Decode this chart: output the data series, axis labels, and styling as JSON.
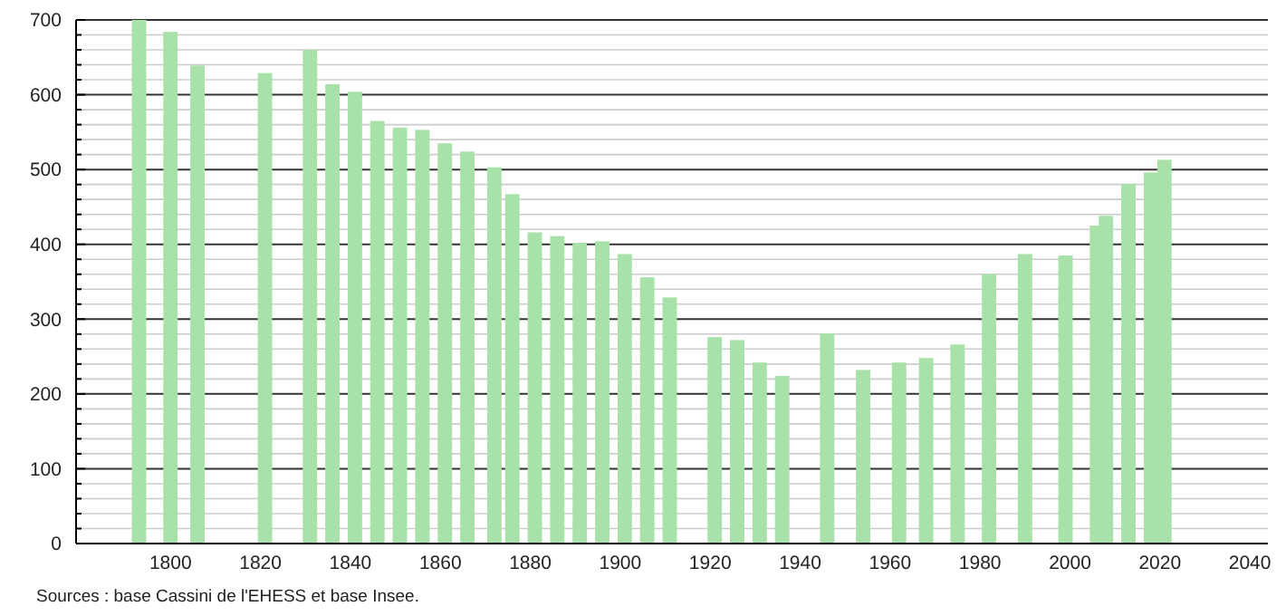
{
  "chart_data": {
    "type": "bar",
    "x": [
      1793,
      1800,
      1806,
      1821,
      1831,
      1836,
      1841,
      1846,
      1851,
      1856,
      1861,
      1866,
      1872,
      1876,
      1881,
      1886,
      1891,
      1896,
      1901,
      1906,
      1911,
      1921,
      1926,
      1931,
      1936,
      1946,
      1954,
      1962,
      1968,
      1975,
      1982,
      1990,
      1999,
      2006,
      2008,
      2013,
      2018,
      2021
    ],
    "values": [
      700,
      684,
      639,
      629,
      660,
      614,
      604,
      565,
      556,
      553,
      535,
      524,
      503,
      467,
      416,
      411,
      402,
      404,
      387,
      356,
      329,
      276,
      272,
      242,
      224,
      281,
      232,
      242,
      248,
      266,
      360,
      387,
      385,
      425,
      438,
      481,
      496,
      513
    ],
    "color": "#a8e2a8",
    "xlim": [
      1779,
      2044
    ],
    "xticks": [
      1800,
      1820,
      1840,
      1860,
      1880,
      1900,
      1920,
      1940,
      1960,
      1980,
      2000,
      2020,
      2040
    ],
    "ylim": [
      0,
      700
    ],
    "yticks": [
      0,
      {
        "value": 20,
        "label": null
      },
      {
        "value": 40,
        "label": null
      },
      {
        "value": 60,
        "label": null
      },
      {
        "value": 80,
        "label": null
      },
      100,
      {
        "value": 120,
        "label": null
      },
      {
        "value": 140,
        "label": null
      },
      {
        "value": 160,
        "label": null
      },
      {
        "value": 180,
        "label": null
      },
      200,
      {
        "value": 220,
        "label": null
      },
      {
        "value": 240,
        "label": null
      },
      {
        "value": 260,
        "label": null
      },
      {
        "value": 280,
        "label": null
      },
      300,
      {
        "value": 320,
        "label": null
      },
      {
        "value": 340,
        "label": null
      },
      {
        "value": 360,
        "label": null
      },
      {
        "value": 380,
        "label": null
      },
      400,
      {
        "value": 420,
        "label": null
      },
      {
        "value": 440,
        "label": null
      },
      {
        "value": 460,
        "label": null
      },
      {
        "value": 480,
        "label": null
      },
      500,
      {
        "value": 520,
        "label": null
      },
      {
        "value": 540,
        "label": null
      },
      {
        "value": 560,
        "label": null
      },
      {
        "value": 580,
        "label": null
      },
      600,
      {
        "value": 620,
        "label": null
      },
      {
        "value": 640,
        "label": null
      },
      {
        "value": 660,
        "label": null
      },
      {
        "value": 680,
        "label": null
      },
      700
    ],
    "grid": "y",
    "annotations": [
      "Sources : base Cassini de l'EHESS et base Insee."
    ]
  }
}
